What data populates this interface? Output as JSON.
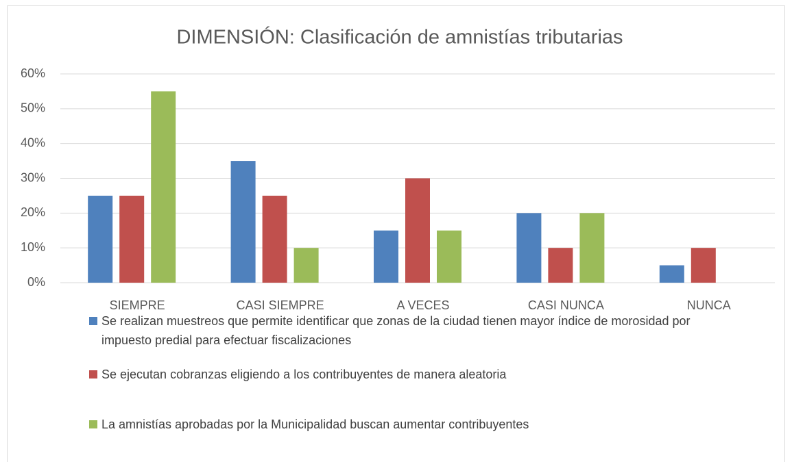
{
  "chart_data": {
    "type": "bar",
    "title": "DIMENSIÓN: Clasificación de amnistías tributarias",
    "categories": [
      "SIEMPRE",
      "CASI SIEMPRE",
      "A VECES",
      "CASI NUNCA",
      "NUNCA"
    ],
    "series": [
      {
        "name": "Se realizan muestreos que permite identificar que zonas de la ciudad tienen mayor índice de morosidad por impuesto predial para efectuar fiscalizaciones",
        "color": "#4f81bd",
        "values": [
          25,
          35,
          15,
          20,
          5
        ]
      },
      {
        "name": "Se ejecutan cobranzas eligiendo a los contribuyentes de manera aleatoria",
        "color": "#c0504d",
        "values": [
          25,
          25,
          30,
          10,
          10
        ]
      },
      {
        "name": "La amnistías aprobadas por la Municipalidad buscan aumentar contribuyentes",
        "color": "#9bbb59",
        "values": [
          55,
          10,
          15,
          20,
          0
        ]
      }
    ],
    "ylim": [
      0,
      60
    ],
    "yticks": [
      {
        "value": 0,
        "label": "0%"
      },
      {
        "value": 10,
        "label": "10%"
      },
      {
        "value": 20,
        "label": "20%"
      },
      {
        "value": 30,
        "label": "30%"
      },
      {
        "value": 40,
        "label": "40%"
      },
      {
        "value": 50,
        "label": "50%"
      },
      {
        "value": 60,
        "label": "60%"
      }
    ],
    "grid": true
  }
}
